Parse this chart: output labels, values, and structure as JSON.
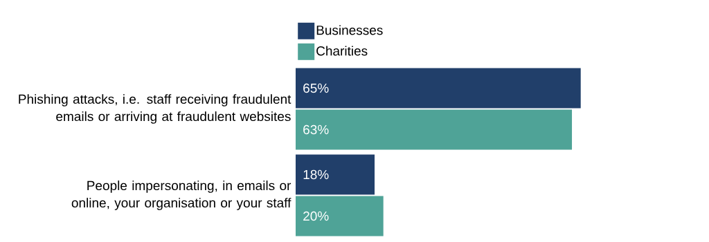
{
  "chart_data": {
    "type": "bar",
    "orientation": "horizontal",
    "categories": [
      "Phishing attacks, i.e. staff receiving fraudulent emails or arriving at fraudulent websites",
      "People impersonating, in emails or online, your organisation or your staff"
    ],
    "series": [
      {
        "name": "Businesses",
        "color": "#213f6a",
        "values": [
          65,
          18
        ],
        "value_labels": [
          "65%",
          "18%"
        ]
      },
      {
        "name": "Charities",
        "color": "#4fa397",
        "values": [
          63,
          20
        ],
        "value_labels": [
          "63%",
          "20%"
        ]
      }
    ],
    "legend": "top left"
  }
}
